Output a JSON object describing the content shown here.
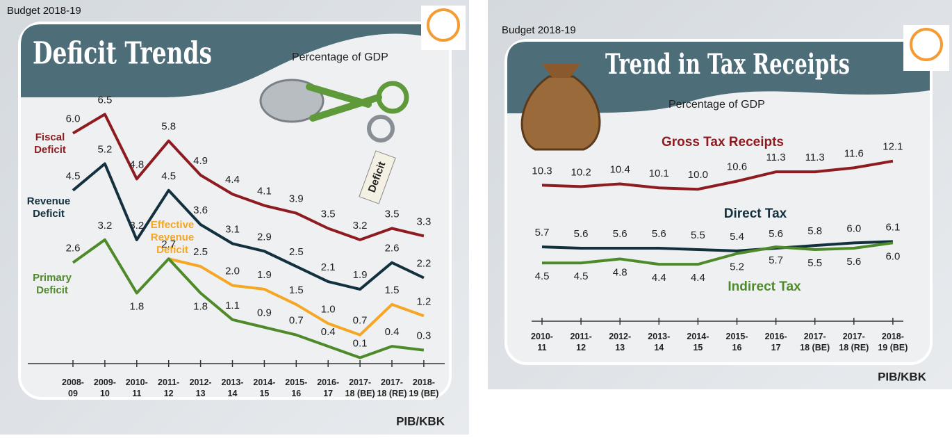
{
  "chart_data": [
    {
      "type": "line",
      "header": "Budget 2018-19",
      "title": "Deficit Trends",
      "subtitle": "Percentage of GDP",
      "annotation": "Deficit",
      "credit": "PIB/KBK",
      "categories": [
        "2008-09",
        "2009-10",
        "2010-11",
        "2011-12",
        "2012-13",
        "2013-14",
        "2014-15",
        "2015-16",
        "2016-17",
        "2017-18 (BE)",
        "2017-18 (RE)",
        "2018-19 (BE)"
      ],
      "ylim": [
        0,
        7
      ],
      "series": [
        {
          "name": "Fiscal Deficit",
          "color": "#8e1b1f",
          "values": [
            6.0,
            6.5,
            4.8,
            5.8,
            4.9,
            4.4,
            4.1,
            3.9,
            3.5,
            3.2,
            3.5,
            3.3
          ],
          "value_labels": [
            "6.0",
            "6.5",
            "4.8",
            "5.8",
            "4.9",
            "4.4",
            "4.1",
            "3.9",
            "3.5",
            "3.2",
            "3.5",
            "3.3"
          ]
        },
        {
          "name": "Revenue Deficit",
          "color": "#13303f",
          "values": [
            4.5,
            5.2,
            3.2,
            4.5,
            3.6,
            3.1,
            2.9,
            2.5,
            2.1,
            1.9,
            2.6,
            2.2
          ],
          "value_labels": [
            "4.5",
            "5.2",
            "3.2",
            "4.5",
            "3.6",
            "3.1",
            "2.9",
            "2.5",
            "2.1",
            "1.9",
            "2.6",
            "2.2"
          ]
        },
        {
          "name": "Effective Revenue Deficit",
          "color": "#f5a623",
          "values": [
            null,
            null,
            null,
            2.7,
            2.5,
            2.0,
            1.9,
            1.5,
            1.0,
            0.7,
            1.5,
            1.2
          ],
          "value_labels": [
            null,
            null,
            null,
            null,
            "2.5",
            "2.0",
            "1.9",
            "1.5",
            "1.0",
            "0.7",
            "1.5",
            "1.2"
          ]
        },
        {
          "name": "Primary Deficit",
          "color": "#4e8a2a",
          "values": [
            2.6,
            3.2,
            1.8,
            2.7,
            1.8,
            1.1,
            0.9,
            0.7,
            0.4,
            0.1,
            0.4,
            0.3
          ],
          "value_labels": [
            "2.6",
            "3.2",
            "1.8",
            "2.7",
            "1.8",
            "1.1",
            "0.9",
            "0.7",
            "0.4",
            "0.1",
            "0.4",
            "0.3"
          ]
        }
      ]
    },
    {
      "type": "line",
      "header": "Budget 2018-19",
      "title": "Trend in Tax Receipts",
      "subtitle": "Percentage of GDP",
      "credit": "PIB/KBK",
      "categories": [
        "2010-11",
        "2011-12",
        "2012-13",
        "2013-14",
        "2014-15",
        "2015-16",
        "2016-17",
        "2017-18 (BE)",
        "2017-18 (RE)",
        "2018-19 (BE)"
      ],
      "ylim": [
        0,
        12.5
      ],
      "series": [
        {
          "name": "Gross Tax Receipts",
          "color": "#8e1b1f",
          "values": [
            10.3,
            10.2,
            10.4,
            10.1,
            10.0,
            10.6,
            11.3,
            11.3,
            11.6,
            12.1
          ],
          "value_labels": [
            "10.3",
            "10.2",
            "10.4",
            "10.1",
            "10.0",
            "10.6",
            "11.3",
            "11.3",
            "11.6",
            "12.1"
          ]
        },
        {
          "name": "Direct Tax",
          "color": "#13303f",
          "values": [
            5.7,
            5.6,
            5.6,
            5.6,
            5.5,
            5.4,
            5.6,
            5.8,
            6.0,
            6.1
          ],
          "value_labels": [
            "5.7",
            "5.6",
            "5.6",
            "5.6",
            "5.5",
            "5.4",
            "5.6",
            "5.8",
            "6.0",
            "6.1"
          ]
        },
        {
          "name": "Indirect Tax",
          "color": "#4e8a2a",
          "values": [
            4.5,
            4.5,
            4.8,
            4.4,
            4.4,
            5.2,
            5.7,
            5.5,
            5.6,
            6.0
          ],
          "value_labels": [
            "4.5",
            "4.5",
            "4.8",
            "4.4",
            "4.4",
            "5.2",
            "5.7",
            "5.5",
            "5.6",
            "6.0"
          ]
        }
      ]
    }
  ]
}
